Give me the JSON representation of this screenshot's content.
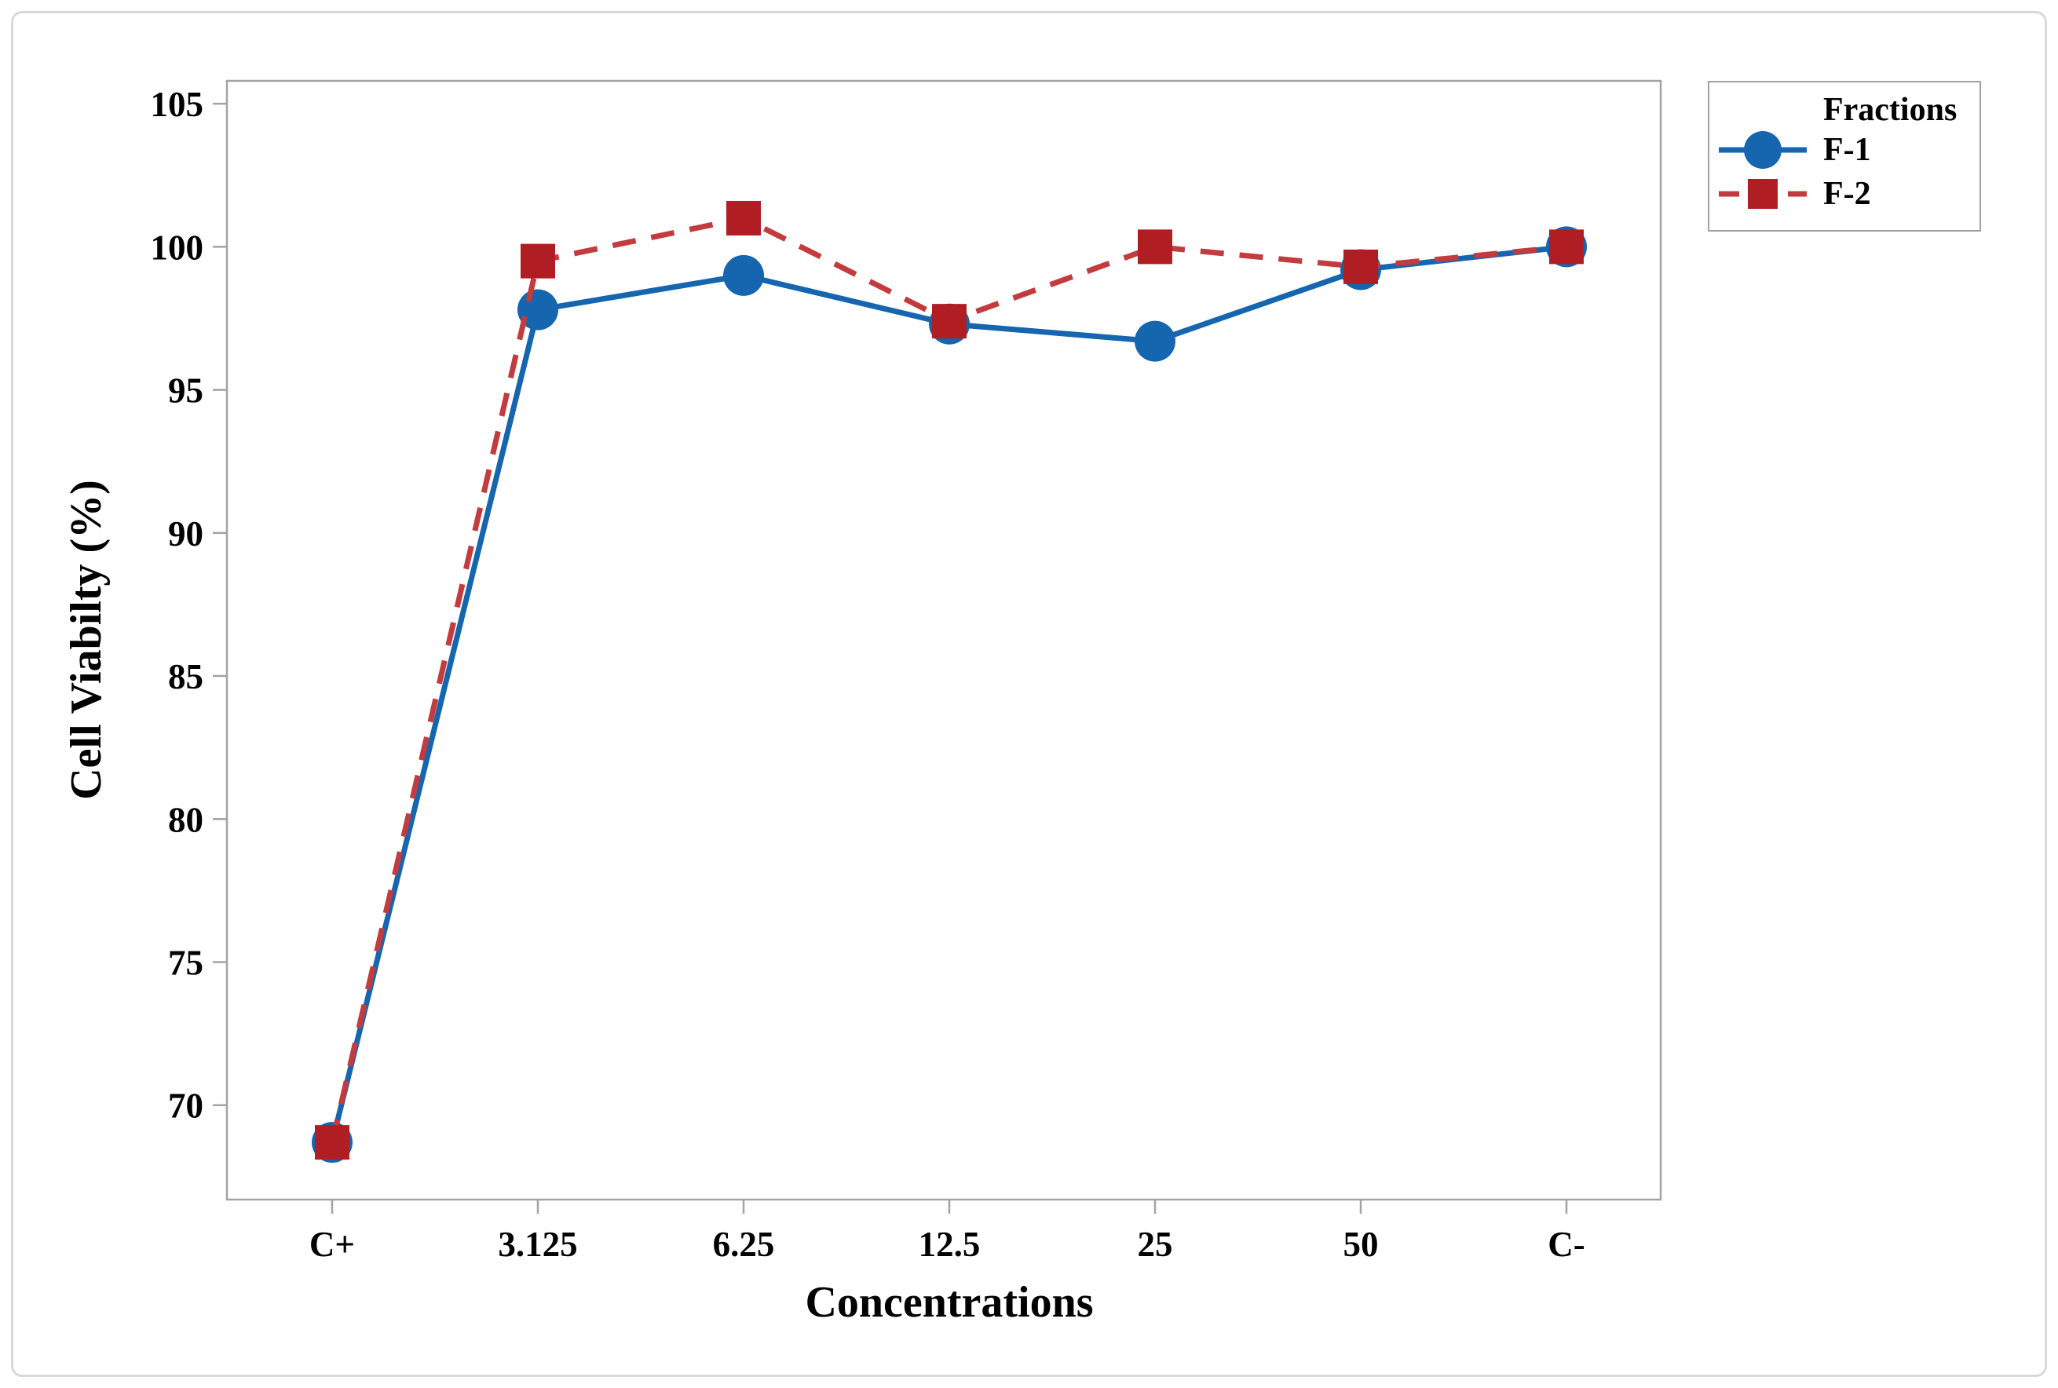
{
  "figure": {
    "outer_border_color": "#d9d9d9",
    "axis_color": "#a3a3a3",
    "background": "#ffffff"
  },
  "chart_data": {
    "type": "line",
    "title": "",
    "xlabel": "Concentrations",
    "ylabel": "Cell Viabilty (%)",
    "categories": [
      "C+",
      "3.125",
      "6.25",
      "12.5",
      "25",
      "50",
      "C-"
    ],
    "series": [
      {
        "name": "F-1",
        "values": [
          68.7,
          97.8,
          99.0,
          97.3,
          96.7,
          99.2,
          100.0
        ],
        "line_color": "#1565af",
        "marker_color": "#1565af",
        "marker": "circle",
        "line_style": "solid"
      },
      {
        "name": "F-2",
        "values": [
          68.7,
          99.5,
          101.0,
          97.4,
          100.0,
          99.3,
          100.0
        ],
        "line_color": "#c23b3e",
        "marker_color": "#b01e24",
        "marker": "square",
        "line_style": "dashed"
      }
    ],
    "yticks": [
      70,
      75,
      80,
      85,
      90,
      95,
      100,
      105
    ],
    "ylim": [
      66.7,
      105.8
    ],
    "grid": false,
    "legend": {
      "title": "Fractions",
      "position": "top-right-outside"
    }
  }
}
